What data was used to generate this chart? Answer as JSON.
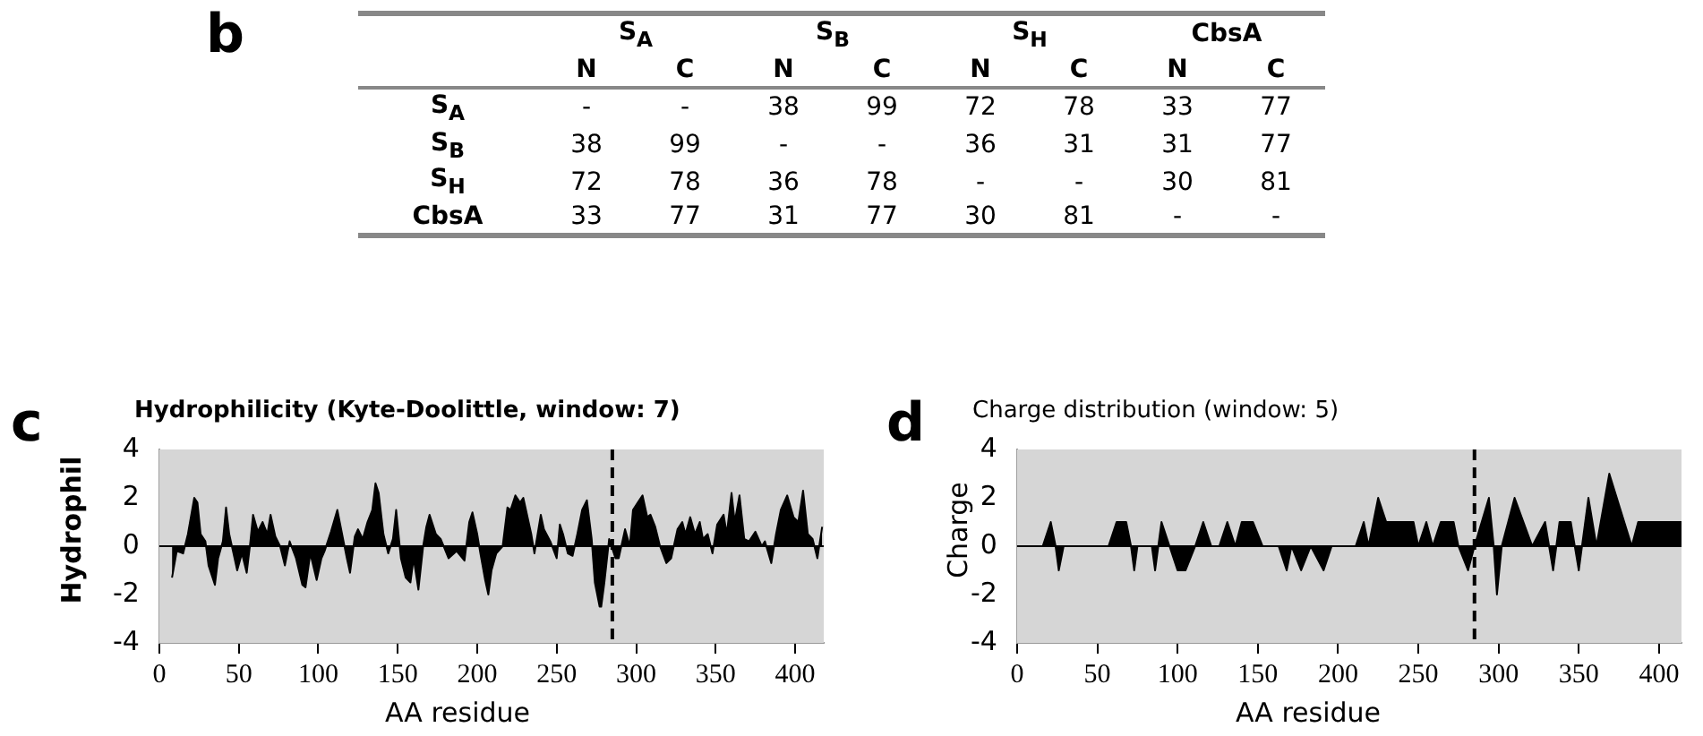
{
  "chart_data": [
    {
      "type": "heatmap",
      "title": "b",
      "cells": [
        [
          null,
          null,
          38,
          99,
          72,
          78,
          33,
          77
        ],
        [
          38,
          99,
          null,
          null,
          36,
          31,
          31,
          77
        ],
        [
          72,
          78,
          36,
          78,
          null,
          null,
          30,
          81
        ],
        [
          33,
          77,
          31,
          77,
          30,
          81,
          null,
          null
        ]
      ],
      "annotations": [
        "S$_{A}$",
        "S$_{B}$",
        "S$_{H}$",
        "CbsA"
      ],
      "categories": [
        "N",
        "C",
        "N",
        "C",
        "N",
        "C",
        "N",
        "C"
      ],
      "y_categories": [
        "S$_{A}$",
        "S$_{B}$",
        "S$_{H}$",
        "CbsA"
      ],
      "cell_labels": [
        [
          "-",
          "-",
          "38",
          "99",
          "72",
          "78",
          "33",
          "77"
        ],
        [
          "38",
          "99",
          "-",
          "-",
          "36",
          "31",
          "31",
          "77"
        ],
        [
          "72",
          "78",
          "36",
          "78",
          "-",
          "-",
          "30",
          "81"
        ],
        [
          "33",
          "77",
          "31",
          "77",
          "30",
          "81",
          "-",
          "-"
        ]
      ]
    },
    {
      "type": "area",
      "title": "Hydrophilicity (Kyte-Doolittle, window: 7)",
      "xlabel": "AA residue",
      "ylabel": "Hydrophil",
      "annotations": [
        "c"
      ],
      "x": [
        8,
        11,
        15,
        18,
        22,
        24,
        26,
        29,
        31,
        35,
        37,
        40,
        42,
        44,
        47,
        49,
        52,
        55,
        57,
        59,
        62,
        65,
        68,
        70,
        73,
        76,
        79,
        82,
        86,
        90,
        92,
        95,
        99,
        102,
        104,
        108,
        112,
        115,
        118,
        120,
        123,
        125,
        128,
        131,
        134,
        136,
        138,
        141,
        144,
        147,
        149,
        152,
        155,
        158,
        160,
        163,
        166,
        168,
        170,
        174,
        177,
        182,
        187,
        192,
        195,
        197,
        200,
        202,
        205,
        207,
        209,
        212,
        216,
        219,
        221,
        224,
        227,
        229,
        234,
        236,
        240,
        242,
        246,
        250,
        252,
        254,
        257,
        260,
        263,
        266,
        269,
        272,
        274,
        277,
        278,
        280,
        283,
        287,
        289,
        293,
        296,
        298,
        301,
        304,
        307,
        309,
        312,
        315,
        319,
        322,
        326,
        329,
        331,
        334,
        337,
        340,
        342,
        345,
        348,
        351,
        355,
        357,
        360,
        362,
        365,
        368,
        371,
        375,
        379,
        381,
        385,
        388,
        391,
        395,
        399,
        402,
        405,
        408,
        411,
        414,
        417
      ],
      "series": [
        {
          "color": "#000000",
          "values": [
            -1.3,
            -0.2,
            -0.3,
            0.5,
            2.0,
            1.8,
            0.5,
            0.2,
            -0.8,
            -1.6,
            -0.5,
            0.2,
            1.6,
            0.5,
            -0.4,
            -1.0,
            -0.3,
            -1.1,
            0,
            1.3,
            0.6,
            1.0,
            0.5,
            1.3,
            0.4,
            0,
            -0.8,
            0.2,
            -0.5,
            -1.6,
            -1.7,
            -0.3,
            -1.4,
            -0.5,
            -0.2,
            0.6,
            1.5,
            0.5,
            -0.5,
            -1.1,
            0.4,
            0.7,
            0.3,
            1.0,
            1.5,
            2.6,
            2.2,
            0.5,
            -0.3,
            0.3,
            1.5,
            -0.5,
            -1.3,
            -1.5,
            -0.5,
            -1.8,
            0,
            0.8,
            1.3,
            0.5,
            0.3,
            -0.5,
            -0.2,
            -0.6,
            1.0,
            1.4,
            0.5,
            -0.3,
            -1.4,
            -2.0,
            -1.0,
            -0.3,
            0,
            1.6,
            1.5,
            2.1,
            1.8,
            2.0,
            0.5,
            -0.3,
            1.3,
            0.7,
            0.2,
            -0.5,
            0.9,
            0.5,
            -0.3,
            -0.4,
            0.5,
            1.5,
            1.9,
            0.3,
            -1.5,
            -2.5,
            -2.5,
            -1.5,
            0.3,
            -0.5,
            -0.5,
            0.7,
            0,
            1.5,
            1.8,
            2.1,
            1.2,
            1.3,
            0.8,
            0,
            -0.7,
            -0.5,
            0.7,
            1.0,
            0.5,
            1.2,
            0.5,
            1.0,
            0.3,
            0.5,
            -0.3,
            0.9,
            1.3,
            0.5,
            2.2,
            1.0,
            2.1,
            0.3,
            0.2,
            0.6,
            0,
            0.2,
            -0.7,
            0.5,
            1.5,
            2.1,
            1.2,
            1.0,
            2.3,
            0.5,
            0.3,
            -0.5,
            0.8
          ]
        }
      ],
      "xlim": [
        0,
        418
      ],
      "xticks": [
        0,
        50,
        100,
        150,
        200,
        250,
        300,
        350,
        400
      ],
      "ylim": [
        -4,
        4
      ],
      "yticks": [
        -4,
        -2,
        0,
        2,
        4
      ],
      "ref_lines": [
        {
          "axis": "x",
          "value": 285,
          "color": "#000000",
          "line_style": "dashed"
        },
        {
          "axis": "y",
          "value": 0,
          "color": "#000000",
          "line_style": "solid"
        }
      ],
      "grid": false,
      "legend": false,
      "marker": "none"
    },
    {
      "type": "area",
      "title": "Charge distribution (window: 5)",
      "xlabel": "AA residue",
      "ylabel": "Charge",
      "annotations": [
        "d"
      ],
      "x": [
        6,
        16,
        21,
        24,
        26,
        29,
        57,
        62,
        68,
        71,
        73,
        75,
        84,
        86,
        90,
        95,
        100,
        105,
        111,
        116,
        121,
        126,
        131,
        136,
        140,
        147,
        153,
        163,
        168,
        171,
        177,
        183,
        191,
        196,
        211,
        216,
        219,
        225,
        230,
        232,
        247,
        250,
        255,
        259,
        264,
        272,
        275,
        281,
        285,
        294,
        297,
        299,
        302,
        310,
        321,
        329,
        334,
        338,
        345,
        350,
        356,
        361,
        369,
        383,
        387,
        414
      ],
      "series": [
        {
          "color": "#000000",
          "values": [
            0,
            0,
            1,
            0,
            -1,
            0,
            0,
            1,
            1,
            0,
            -1,
            0,
            0,
            -1,
            1,
            0,
            -1,
            -1,
            0,
            1,
            0,
            0,
            1,
            0,
            1,
            1,
            0,
            0,
            -1,
            0,
            -1,
            0,
            -1,
            0,
            0,
            1,
            0,
            2,
            1,
            1,
            1,
            0,
            1,
            0,
            1,
            1,
            0,
            -1,
            0,
            2,
            0,
            -2,
            0,
            2,
            0,
            1,
            -1,
            1,
            1,
            -1,
            2,
            0,
            3,
            0,
            1,
            1
          ]
        }
      ],
      "xlim": [
        0,
        414
      ],
      "xticks": [
        0,
        50,
        100,
        150,
        200,
        250,
        300,
        350,
        400
      ],
      "ylim": [
        -4,
        4
      ],
      "yticks": [
        -4,
        -2,
        0,
        2,
        4
      ],
      "ref_lines": [
        {
          "axis": "x",
          "value": 285,
          "color": "#000000",
          "line_style": "dashed"
        },
        {
          "axis": "y",
          "value": 0,
          "color": "#000000",
          "line_style": "solid"
        }
      ],
      "grid": false,
      "legend": false,
      "marker": "none"
    }
  ]
}
